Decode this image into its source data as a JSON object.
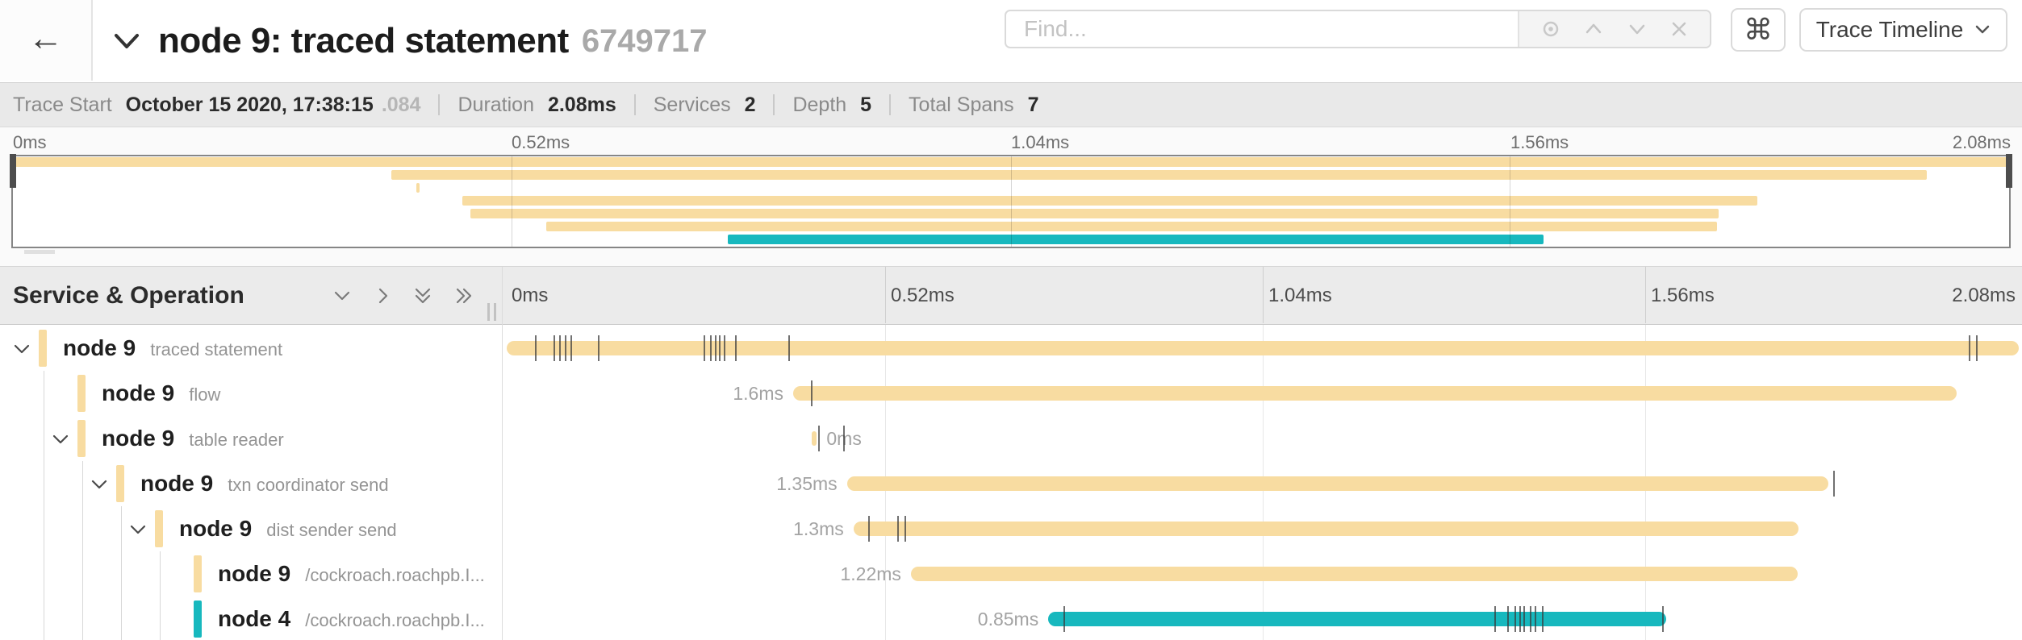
{
  "header": {
    "back_icon": "←",
    "title": "node 9: traced statement",
    "trace_id_short": "6749717",
    "find_placeholder": "Find...",
    "shortcut_button": "⌘",
    "view_select": "Trace Timeline"
  },
  "summary": {
    "items": [
      {
        "label": "Trace Start",
        "value": "October 15 2020, 17:38:15",
        "suffix": ".084"
      },
      {
        "label": "Duration",
        "value": "2.08ms"
      },
      {
        "label": "Services",
        "value": "2"
      },
      {
        "label": "Depth",
        "value": "5"
      },
      {
        "label": "Total Spans",
        "value": "7"
      }
    ]
  },
  "timeline": {
    "left_header": "Service & Operation",
    "ticks": [
      "0ms",
      "0.52ms",
      "1.04ms",
      "1.56ms",
      "2.08ms"
    ]
  },
  "chart_data": {
    "type": "gantt-trace",
    "view_start_ms": 0,
    "view_end_ms": 2.08,
    "axis_ticks": [
      "0ms",
      "0.52ms",
      "1.04ms",
      "1.56ms",
      "2.08ms"
    ],
    "colors": {
      "node9": "#F8DCA1",
      "node4": "#17B8BE"
    },
    "spans": [
      {
        "service": "node 9",
        "operation": "traced statement",
        "depth": 0,
        "has_children": true,
        "color": "#F8DCA1",
        "start_ms": 0,
        "duration_ms": 2.08,
        "duration_label": "",
        "label_side": "none",
        "log_ticks_ms": [
          0.04,
          0.065,
          0.073,
          0.081,
          0.089,
          0.127,
          0.272,
          0.281,
          0.287,
          0.293,
          0.3,
          0.315,
          0.388,
          2.012,
          2.022
        ]
      },
      {
        "service": "node 9",
        "operation": "flow",
        "depth": 1,
        "has_children": false,
        "color": "#F8DCA1",
        "start_ms": 0.394,
        "duration_ms": 1.6,
        "duration_label": "1.6ms",
        "label_side": "left",
        "log_ticks_ms": [
          0.419
        ]
      },
      {
        "service": "node 9",
        "operation": "table reader",
        "depth": 1,
        "has_children": true,
        "color": "#F8DCA1",
        "start_ms": 0.42,
        "duration_ms": 0,
        "duration_label": "0ms",
        "label_side": "right",
        "log_ticks_ms": [
          0.43,
          0.464
        ]
      },
      {
        "service": "node 9",
        "operation": "txn coordinator send",
        "depth": 2,
        "has_children": true,
        "color": "#F8DCA1",
        "start_ms": 0.468,
        "duration_ms": 1.35,
        "duration_label": "1.35ms",
        "label_side": "left",
        "log_ticks_ms": [
          1.826
        ]
      },
      {
        "service": "node 9",
        "operation": "dist sender send",
        "depth": 3,
        "has_children": true,
        "color": "#F8DCA1",
        "start_ms": 0.477,
        "duration_ms": 1.3,
        "duration_label": "1.3ms",
        "label_side": "left",
        "log_ticks_ms": [
          0.498,
          0.538,
          0.548
        ]
      },
      {
        "service": "node 9",
        "operation": "/cockroach.roachpb.I...",
        "depth": 4,
        "has_children": false,
        "color": "#F8DCA1",
        "start_ms": 0.556,
        "duration_ms": 1.22,
        "duration_label": "1.22ms",
        "label_side": "left",
        "log_ticks_ms": []
      },
      {
        "service": "node 4",
        "operation": "/cockroach.roachpb.I...",
        "depth": 4,
        "has_children": false,
        "color": "#17B8BE",
        "start_ms": 0.745,
        "duration_ms": 0.85,
        "duration_label": "0.85ms",
        "label_side": "left",
        "log_ticks_ms": [
          0.767,
          1.36,
          1.377,
          1.387,
          1.394,
          1.4,
          1.408,
          1.415,
          1.425,
          1.591
        ]
      }
    ]
  }
}
